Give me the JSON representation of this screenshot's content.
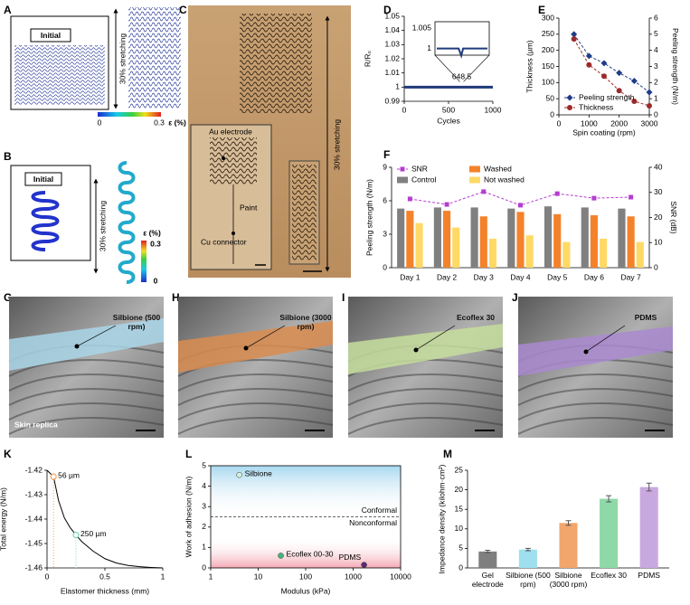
{
  "panel_labels": [
    "A",
    "B",
    "C",
    "D",
    "E",
    "F",
    "G",
    "H",
    "I",
    "J",
    "K",
    "L",
    "M"
  ],
  "panel_a": {
    "initial": "Initial",
    "stretch": "30% stretching",
    "colorbar_ticks": [
      0,
      0.3
    ],
    "colorbar_label": "ε (%)"
  },
  "panel_b": {
    "initial": "Initial",
    "stretch": "30% stretching",
    "colorbar_ticks": [
      0,
      0.3
    ],
    "colorbar_label": "ε (%)"
  },
  "panel_c": {
    "electrode": "Au electrode",
    "paint": "Paint",
    "connector": "Cu connector",
    "stretch": "30% stretching"
  },
  "photos": [
    {
      "label": "Silbione (500 rpm)",
      "note": "Skin replica"
    },
    {
      "label": "Silbione (3000 rpm)"
    },
    {
      "label": "Ecoflex 30"
    },
    {
      "label": "PDMS"
    }
  ],
  "chart_data": [
    {
      "type": "line",
      "ylabel": "R/R₀",
      "xlabel": "Cycles",
      "xlim": [
        0,
        1000
      ],
      "xticks": [
        0,
        500,
        1000
      ],
      "ylim": [
        0.99,
        1.05
      ],
      "yticks": [
        0.99,
        1,
        1.01,
        1.02,
        1.03,
        1.04,
        1.05
      ],
      "x": [
        0,
        50,
        100,
        150,
        200,
        250,
        300,
        350,
        400,
        450,
        500,
        550,
        600,
        650,
        700,
        750,
        800,
        850,
        900,
        950,
        1000
      ],
      "series": [
        {
          "color": "#1f3a7a",
          "values": [
            1,
            1,
            1,
            1,
            1,
            1,
            1,
            1,
            1,
            1,
            1,
            1,
            1,
            1,
            1,
            1,
            1,
            1,
            1,
            1,
            1
          ]
        }
      ],
      "inset": {
        "xlim": [
          600,
          700
        ],
        "ylim": [
          0.999,
          1.006
        ],
        "yticks": [
          1,
          1.005
        ],
        "xticks": [
          648.5
        ]
      }
    },
    {
      "type": "line",
      "xlabel": "Spin coating (rpm)",
      "ylabel": "Thickness (µm)",
      "y2label": "Peeling strength (N/m)",
      "x": [
        500,
        1000,
        1500,
        2000,
        2500,
        3000
      ],
      "xlim": [
        0,
        3000
      ],
      "xticks": [
        0,
        1000,
        2000,
        3000
      ],
      "ylim": [
        0,
        300
      ],
      "yticks": [
        0,
        50,
        100,
        150,
        200,
        250,
        300
      ],
      "y2lim": [
        0,
        6
      ],
      "y2ticks": [
        0,
        1,
        2,
        3,
        4,
        5,
        6
      ],
      "legend": "lower left",
      "series": [
        {
          "name": "Peeling strength",
          "color": "#1f3c88",
          "axis": "y2",
          "marker": "diamond",
          "dash": true,
          "values": [
            5.0,
            3.65,
            3.2,
            2.6,
            2.1,
            1.4
          ]
        },
        {
          "name": "Thickness",
          "color": "#9b2a2a",
          "marker": "circle",
          "dash": true,
          "values": [
            235,
            155,
            120,
            75,
            42,
            28
          ]
        }
      ]
    },
    {
      "type": "bar",
      "categories": [
        "Day 1",
        "Day 2",
        "Day 3",
        "Day 4",
        "Day 5",
        "Day 6",
        "Day 7"
      ],
      "ylabel": "Peeling strength (N/m)",
      "y2label": "SNR (dB)",
      "ylim": [
        0,
        9
      ],
      "yticks": [
        0,
        3,
        6,
        9
      ],
      "y2lim": [
        0,
        40
      ],
      "y2ticks": [
        0,
        10,
        20,
        30,
        40
      ],
      "legend": "upper left",
      "series": [
        {
          "name": "SNR",
          "color": "#b43cd0",
          "style": "line",
          "axis": "y2",
          "marker": "square",
          "dash": true,
          "values": [
            27.4,
            25.2,
            30.3,
            24.9,
            29.5,
            27.7,
            28.1
          ]
        },
        {
          "name": "Control",
          "color": "#808080",
          "values": [
            5.3,
            5.4,
            5.4,
            5.3,
            5.5,
            5.4,
            5.3
          ]
        },
        {
          "name": "Washed",
          "color": "#f4822a",
          "values": [
            5.1,
            5.1,
            4.6,
            5.0,
            4.8,
            4.7,
            4.6
          ]
        },
        {
          "name": "Not washed",
          "color": "#ffd966",
          "values": [
            4.0,
            3.6,
            2.6,
            2.9,
            2.3,
            2.6,
            2.3
          ]
        }
      ]
    },
    {
      "type": "line",
      "xlabel": "Elastomer thickness (mm)",
      "ylabel": "Total energy (N/m)",
      "xlim": [
        0,
        1
      ],
      "xticks": [
        0,
        0.5,
        1
      ],
      "ylim": [
        -1.46,
        -1.42
      ],
      "yticks": [
        -1.46,
        -1.45,
        -1.44,
        -1.43,
        -1.42
      ],
      "x": [
        0,
        0.056,
        0.1,
        0.15,
        0.2,
        0.25,
        0.3,
        0.4,
        0.5,
        0.6,
        0.7,
        0.8,
        0.9,
        1
      ],
      "series": [
        {
          "color": "#000000",
          "values": [
            -1.42,
            -1.4226,
            -1.4325,
            -1.4395,
            -1.4435,
            -1.4465,
            -1.4492,
            -1.4532,
            -1.4562,
            -1.458,
            -1.459,
            -1.4595,
            -1.4598,
            -1.46
          ]
        }
      ],
      "highlights": [
        {
          "x": 0.056,
          "y": -1.4226,
          "label": "56 µm",
          "color": "#f4a460"
        },
        {
          "x": 0.25,
          "y": -1.4465,
          "label": "250 µm",
          "color": "#7fd1b9"
        }
      ]
    },
    {
      "type": "scatter",
      "xscale": "log",
      "frame": true,
      "xlabel": "Modulus (kPa)",
      "ylabel": "Work of adhesion (N/m)",
      "xlim": [
        1,
        10000
      ],
      "xticks": [
        1,
        10,
        100,
        1000,
        10000
      ],
      "ylim": [
        0,
        5
      ],
      "yticks": [
        0,
        1,
        2,
        3,
        4,
        5
      ],
      "x": [
        4,
        30,
        1700
      ],
      "values": [
        4.55,
        0.6,
        0.15
      ],
      "point_labels": [
        "Silbione",
        "Ecoflex 00-30",
        "PDMS"
      ],
      "colors": [
        "#d4f0dd",
        "#3cb878",
        "#5a2a7a"
      ],
      "reference": {
        "value": 2.5,
        "above": "Conformal",
        "below": "Nonconformal"
      }
    },
    {
      "type": "bar",
      "ylabel": "Impedance density (kilohm·cm²)",
      "categories": [
        "Gel electrode",
        "Silbione (500 rpm)",
        "Silbione (3000 rpm)",
        "Ecoflex 30",
        "PDMS"
      ],
      "values": [
        4.2,
        4.7,
        11.5,
        17.7,
        20.7
      ],
      "errors": [
        0.3,
        0.3,
        0.6,
        0.8,
        1.0
      ],
      "colors": [
        "#7f7f7f",
        "#9ee0ef",
        "#f2a66b",
        "#8fd9a8",
        "#c9a8e0"
      ],
      "ylim": [
        0,
        25
      ],
      "yticks": [
        0,
        5,
        10,
        15,
        20,
        25
      ],
      "wrap_labels": true
    }
  ]
}
